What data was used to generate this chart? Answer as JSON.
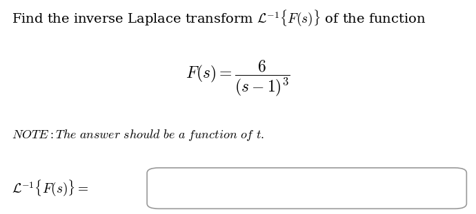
{
  "title_text": "Find the inverse Laplace transform $\\mathcal{L}^{-1}\\{F(s)\\}$ of the function",
  "formula_text": "$F(s) = \\dfrac{6}{(s-1)^3}$",
  "note_text": "$\\mathit{NOTE: The\\ answer\\ should\\ be\\ a\\ function\\ of\\ t.}$",
  "answer_label": "$\\mathcal{L}^{-1}\\{F(s)\\} = $",
  "bg_color": "#ffffff",
  "text_color": "#000000",
  "title_fontsize": 14,
  "formula_fontsize": 17,
  "note_fontsize": 13,
  "answer_fontsize": 14,
  "box_color": "#999999"
}
